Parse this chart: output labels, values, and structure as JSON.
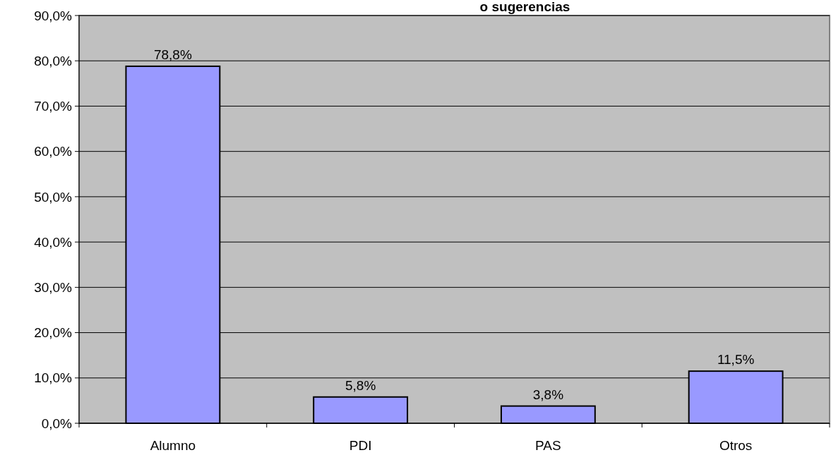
{
  "chart_data": {
    "type": "bar",
    "title": "o sugerencias",
    "categories": [
      "Alumno",
      "PDI",
      "PAS",
      "Otros"
    ],
    "values": [
      78.8,
      5.8,
      3.8,
      11.5
    ],
    "value_labels": [
      "78,8%",
      "5,8%",
      "3,8%",
      "11,5%"
    ],
    "color": "#9999ff",
    "ylim": [
      0,
      90
    ],
    "yticks": [
      {
        "value": 0,
        "label": "0,0%"
      },
      {
        "value": 10,
        "label": "10,0%"
      },
      {
        "value": 20,
        "label": "20,0%"
      },
      {
        "value": 30,
        "label": "30,0%"
      },
      {
        "value": 40,
        "label": "40,0%"
      },
      {
        "value": 50,
        "label": "50,0%"
      },
      {
        "value": 60,
        "label": "60,0%"
      },
      {
        "value": 70,
        "label": "70,0%"
      },
      {
        "value": 80,
        "label": "80,0%"
      },
      {
        "value": 90,
        "label": "90,0%"
      }
    ],
    "grid": "y"
  }
}
